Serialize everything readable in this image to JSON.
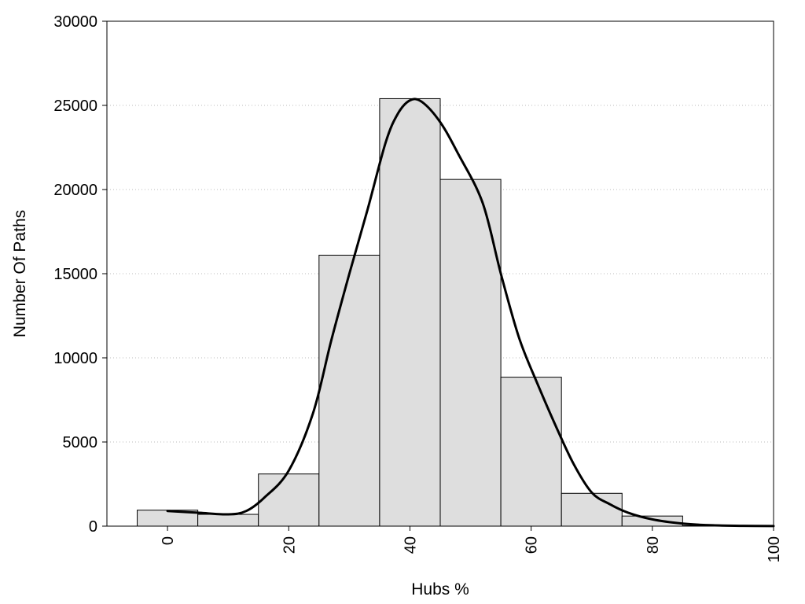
{
  "chart_data": {
    "type": "bar",
    "subtype": "histogram-with-density-curve",
    "title": "",
    "xlabel": "Hubs %",
    "ylabel": "Number Of Paths",
    "xlim": [
      -10,
      100
    ],
    "ylim": [
      0,
      30000
    ],
    "xticks": [
      0,
      20,
      40,
      60,
      80,
      100
    ],
    "yticks": [
      0,
      5000,
      10000,
      15000,
      20000,
      25000,
      30000
    ],
    "bin_width": 10,
    "bins": [
      {
        "center": 0,
        "value": 950
      },
      {
        "center": 10,
        "value": 700
      },
      {
        "center": 20,
        "value": 3100
      },
      {
        "center": 30,
        "value": 16100
      },
      {
        "center": 40,
        "value": 25400
      },
      {
        "center": 50,
        "value": 20600
      },
      {
        "center": 60,
        "value": 8850
      },
      {
        "center": 70,
        "value": 1950
      },
      {
        "center": 80,
        "value": 600
      },
      {
        "center": 90,
        "value": 30
      }
    ],
    "density_curve": {
      "x": [
        0,
        5,
        10,
        13,
        16,
        20,
        24,
        27,
        30,
        33,
        36,
        38,
        40,
        42,
        45,
        48,
        52,
        55,
        58,
        61,
        64,
        67,
        70,
        73,
        76,
        80,
        85,
        90,
        95,
        100
      ],
      "y": [
        900,
        800,
        700,
        900,
        1700,
        3300,
        6700,
        11000,
        15000,
        18800,
        22800,
        24500,
        25300,
        25200,
        24000,
        22100,
        19200,
        15000,
        11200,
        8500,
        6000,
        3700,
        2000,
        1300,
        800,
        400,
        150,
        50,
        20,
        5
      ]
    },
    "grid": {
      "y": true,
      "x": false,
      "style": "dotted"
    },
    "legend": null
  }
}
